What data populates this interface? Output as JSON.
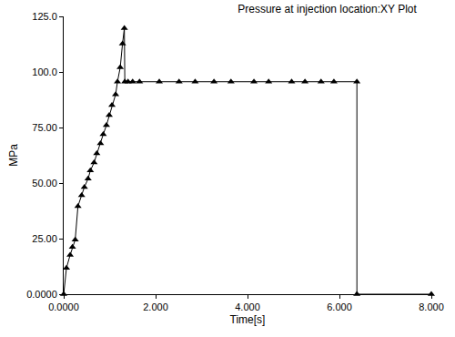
{
  "chart_data": {
    "type": "line",
    "title": "Pressure at injection location:XY Plot",
    "x_label": "Time[s]",
    "y_label": "MPa",
    "x": [
      0,
      0.06,
      0.14,
      0.19,
      0.25,
      0.31,
      0.39,
      0.45,
      0.53,
      0.58,
      0.66,
      0.72,
      0.8,
      0.86,
      0.93,
      0.99,
      1.05,
      1.13,
      1.17,
      1.23,
      1.28,
      1.32,
      1.33,
      1.4,
      1.5,
      1.65,
      2.08,
      2.51,
      2.86,
      3.27,
      3.64,
      4.14,
      4.46,
      4.96,
      5.25,
      5.6,
      5.88,
      6.38,
      6.38,
      8.0
    ],
    "values": [
      0,
      11.8,
      17.6,
      21.2,
      24.5,
      39.6,
      44.5,
      48.2,
      51.9,
      55.6,
      59.2,
      63.3,
      67.8,
      71.9,
      76.0,
      80.5,
      85.0,
      89.9,
      95.6,
      102.0,
      112.7,
      119.7,
      95.6,
      95.6,
      95.6,
      95.6,
      95.6,
      95.6,
      95.6,
      95.6,
      95.6,
      95.6,
      95.6,
      95.6,
      95.6,
      95.6,
      95.6,
      95.6,
      0,
      0
    ],
    "color": "#000000",
    "marker": "triangle-up",
    "line_style": "solid",
    "xlim": [
      0,
      8
    ],
    "xticks": [
      {
        "value": 0,
        "label": "0.0000"
      },
      {
        "value": 2,
        "label": "2.000"
      },
      {
        "value": 4,
        "label": "4.000"
      },
      {
        "value": 6,
        "label": "6.000"
      },
      {
        "value": 8,
        "label": "8.000"
      }
    ],
    "ylim": [
      0,
      125
    ],
    "yticks": [
      {
        "value": 0,
        "label": "0.0000"
      },
      {
        "value": 25,
        "label": "25.00"
      },
      {
        "value": 50,
        "label": "50.00"
      },
      {
        "value": 75,
        "label": "75.00"
      },
      {
        "value": 100,
        "label": "100.0"
      },
      {
        "value": 125,
        "label": "125.0"
      }
    ],
    "grid": false
  }
}
